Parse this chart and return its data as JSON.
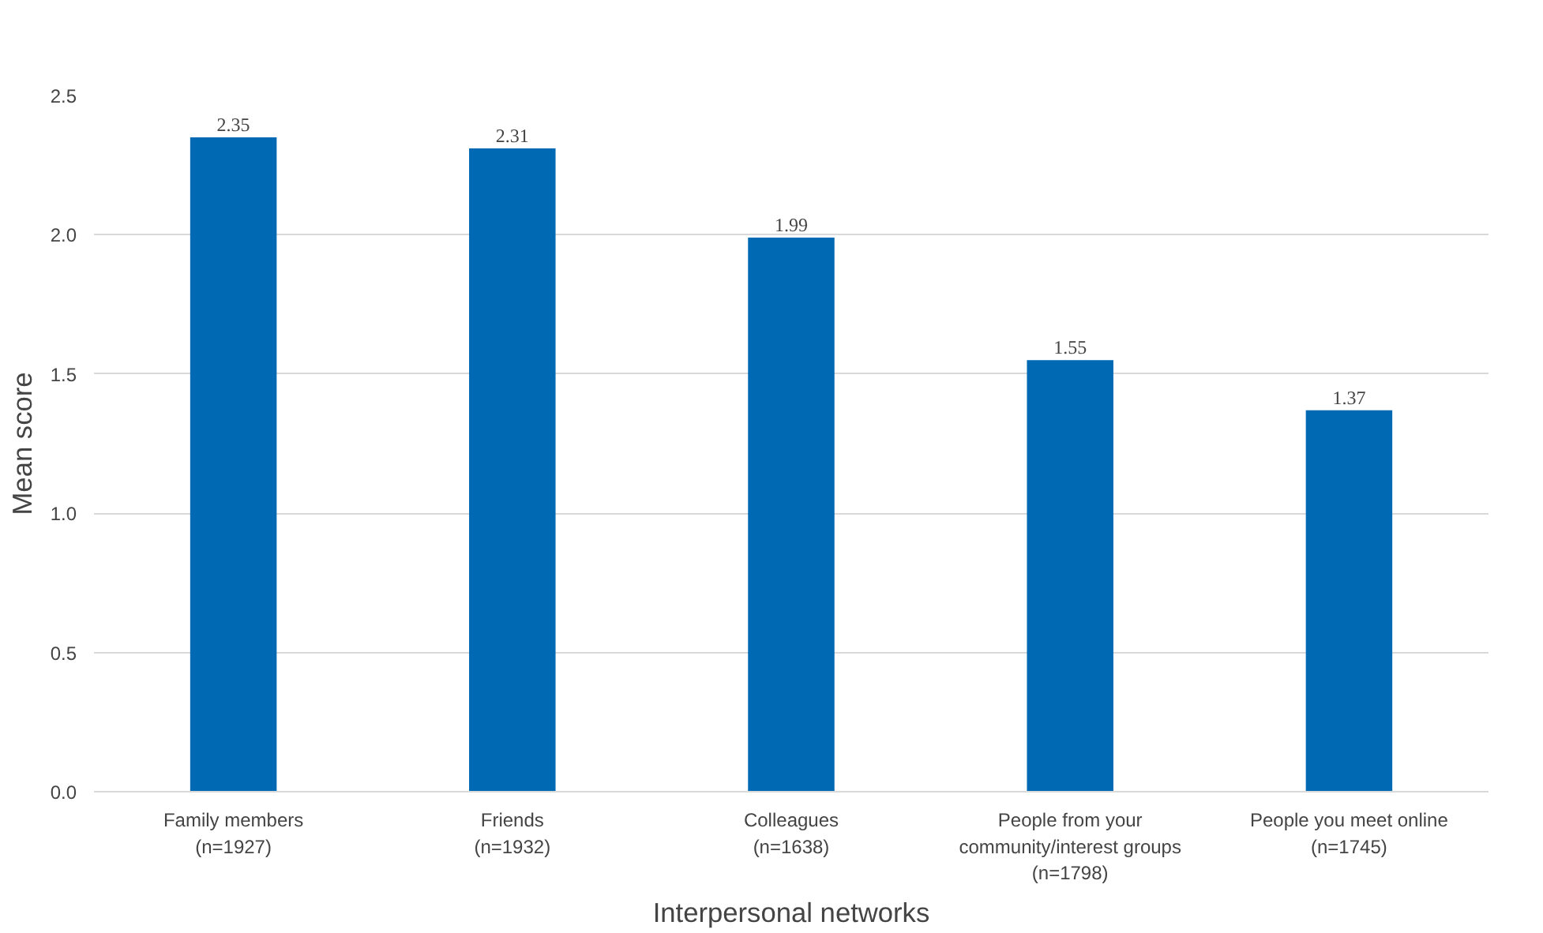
{
  "chart_data": {
    "type": "bar",
    "categories": [
      "Family members\n(n=1927)",
      "Friends\n(n=1932)",
      "Colleagues\n(n=1638)",
      "People from your\ncommunity/interest groups\n(n=1798)",
      "People you meet online\n(n=1745)"
    ],
    "values": [
      2.35,
      2.31,
      1.99,
      1.55,
      1.37
    ],
    "color": "#0069b4",
    "xlabel": "Interpersonal networks",
    "ylabel": "Mean score",
    "ylim": [
      0,
      2.5
    ],
    "yticks": [
      {
        "value": 0,
        "label": "0.0"
      },
      {
        "value": 0.5,
        "label": "0.5"
      },
      {
        "value": 1,
        "label": "1.0"
      },
      {
        "value": 1.5,
        "label": "1.5"
      },
      {
        "value": 2,
        "label": "2.0"
      },
      {
        "value": 2.5,
        "label": "2.5"
      }
    ],
    "grid": "y",
    "data_labels": true
  }
}
